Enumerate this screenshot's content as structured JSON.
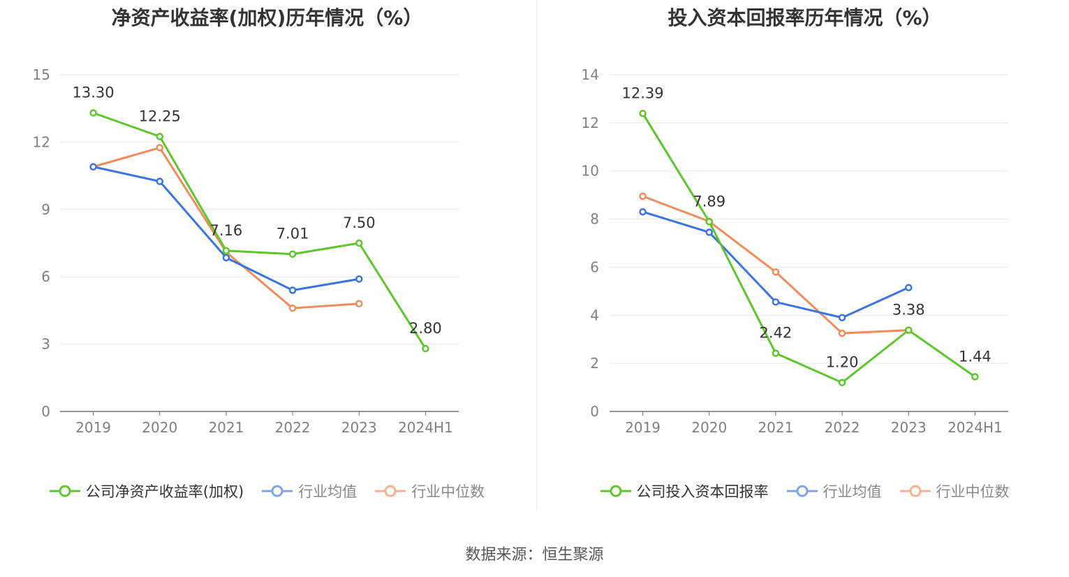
{
  "colors": {
    "company": "#5cc62a",
    "industry_avg": "#3b74e0",
    "industry_median": "#f08b5a",
    "grid": "#e3e6f0",
    "axis": "#6e7079"
  },
  "source_text": "数据来源：恒生聚源",
  "chart_data": [
    {
      "type": "line",
      "title": "净资产收益率(加权)历年情况（%）",
      "categories": [
        "2019",
        "2020",
        "2021",
        "2022",
        "2023",
        "2024H1"
      ],
      "ylim": [
        0,
        15
      ],
      "yticks": [
        0,
        3,
        6,
        9,
        12,
        15
      ],
      "grid": true,
      "legend_position": "bottom",
      "series": [
        {
          "name": "公司净资产收益率(加权)",
          "color": "#5cc62a",
          "values": [
            13.3,
            12.25,
            7.16,
            7.01,
            7.5,
            2.8
          ],
          "labels": [
            "13.30",
            "12.25",
            "7.16",
            "7.01",
            "7.50",
            "2.80"
          ]
        },
        {
          "name": "行业均值",
          "color": "#3b74e0",
          "values": [
            10.9,
            10.25,
            6.85,
            5.4,
            5.9,
            null
          ]
        },
        {
          "name": "行业中位数",
          "color": "#f08b5a",
          "values": [
            10.9,
            11.75,
            7.1,
            4.6,
            4.8,
            null
          ]
        }
      ]
    },
    {
      "type": "line",
      "title": "投入资本回报率历年情况（%）",
      "categories": [
        "2019",
        "2020",
        "2021",
        "2022",
        "2023",
        "2024H1"
      ],
      "ylim": [
        0,
        14
      ],
      "yticks": [
        0,
        2,
        4,
        6,
        8,
        10,
        12,
        14
      ],
      "grid": true,
      "legend_position": "bottom",
      "series": [
        {
          "name": "公司投入资本回报率",
          "color": "#5cc62a",
          "values": [
            12.39,
            7.89,
            2.42,
            1.2,
            3.38,
            1.44
          ],
          "labels": [
            "12.39",
            "7.89",
            "2.42",
            "1.20",
            "3.38",
            "1.44"
          ]
        },
        {
          "name": "行业均值",
          "color": "#3b74e0",
          "values": [
            8.3,
            7.45,
            4.55,
            3.9,
            5.15,
            null
          ]
        },
        {
          "name": "行业中位数",
          "color": "#f08b5a",
          "values": [
            8.95,
            7.9,
            5.8,
            3.25,
            3.38,
            null
          ]
        }
      ]
    }
  ]
}
